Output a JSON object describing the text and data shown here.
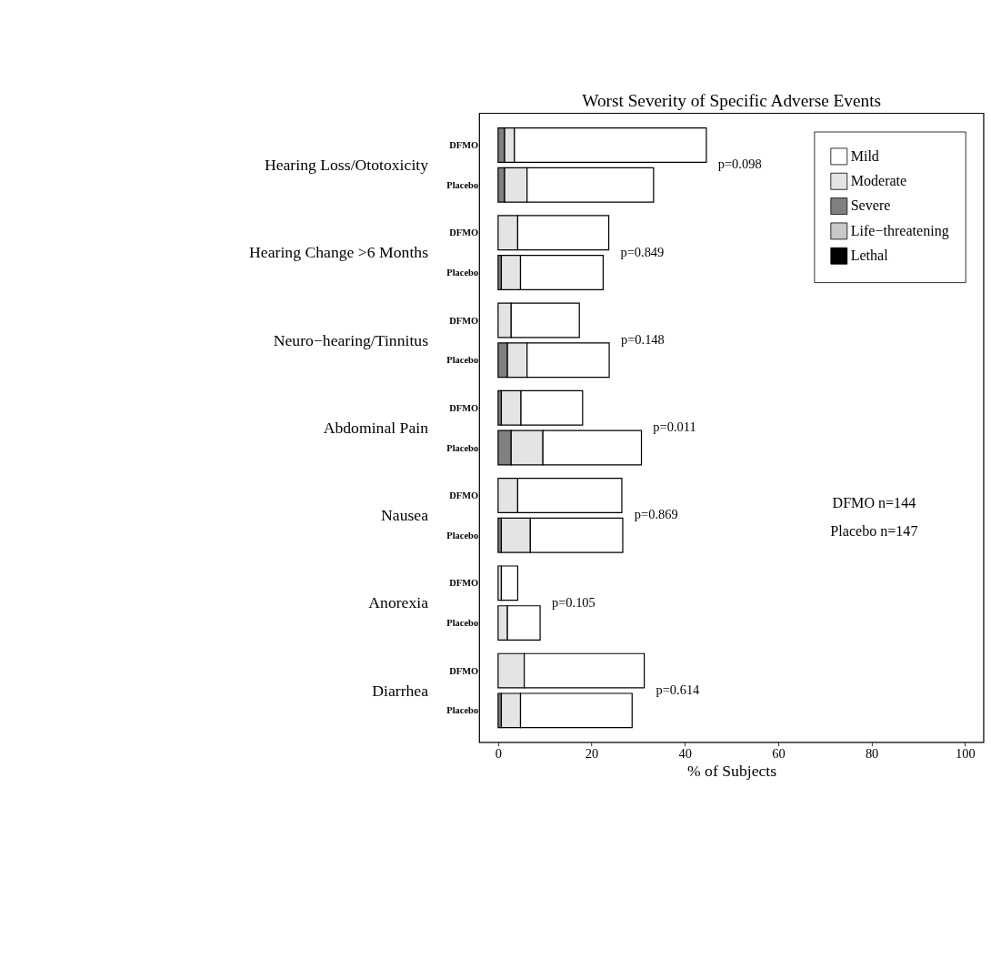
{
  "chart_data": {
    "type": "bar",
    "orientation": "horizontal",
    "stacked": true,
    "title": "Worst Severity of Specific Adverse Events",
    "xlabel": "% of Subjects",
    "categories": [
      "DFMO",
      "Placebo",
      "DFMO",
      "Placebo",
      "DFMO",
      "Placebo",
      "DFMO",
      "Placebo",
      "DFMO",
      "Placebo",
      "DFMO",
      "Placebo",
      "DFMO",
      "Placebo"
    ],
    "series": [
      {
        "name": "Lethal",
        "color": "#000000",
        "values": [
          0,
          0,
          0,
          0,
          0,
          0,
          0,
          0,
          0,
          0,
          0,
          0,
          0,
          0
        ]
      },
      {
        "name": "Life−threatening",
        "color": "#c8c8c8",
        "values": [
          0,
          0,
          0,
          0,
          0,
          0,
          0,
          0,
          0,
          0,
          0,
          0,
          0,
          0
        ]
      },
      {
        "name": "Severe",
        "color": "#808080",
        "values": [
          1.4,
          1.4,
          0,
          0.7,
          0,
          2.0,
          0.7,
          2.8,
          0,
          0.7,
          0,
          0,
          0,
          0.7
        ]
      },
      {
        "name": "Moderate",
        "color": "#e4e4e4",
        "values": [
          2.1,
          4.8,
          4.2,
          4.1,
          2.8,
          4.2,
          4.2,
          6.8,
          4.2,
          6.2,
          0.7,
          2.0,
          5.6,
          4.1
        ]
      },
      {
        "name": "Mild",
        "color": "#ffffff",
        "values": [
          41.1,
          27.1,
          19.5,
          17.7,
          14.6,
          17.6,
          13.2,
          21.1,
          22.3,
          19.8,
          3.5,
          7.0,
          25.7,
          23.9
        ]
      }
    ],
    "xlim": [
      -4,
      104
    ],
    "xticks": [
      0,
      20,
      40,
      60,
      80,
      100
    ],
    "grid": false,
    "legend": "top right",
    "annotations": [
      "Hearing Loss/Ototoxicity",
      "Hearing Change >6 Months",
      "Neuro−hearing/Tinnitus",
      "Abdominal Pain",
      "Nausea",
      "Anorexia",
      "Diarrhea",
      "p=0.098",
      "p=0.849",
      "p=0.148",
      "p=0.011",
      "p=0.869",
      "p=0.105",
      "p=0.614",
      "DFMO n=144",
      "Placebo n=147"
    ]
  }
}
